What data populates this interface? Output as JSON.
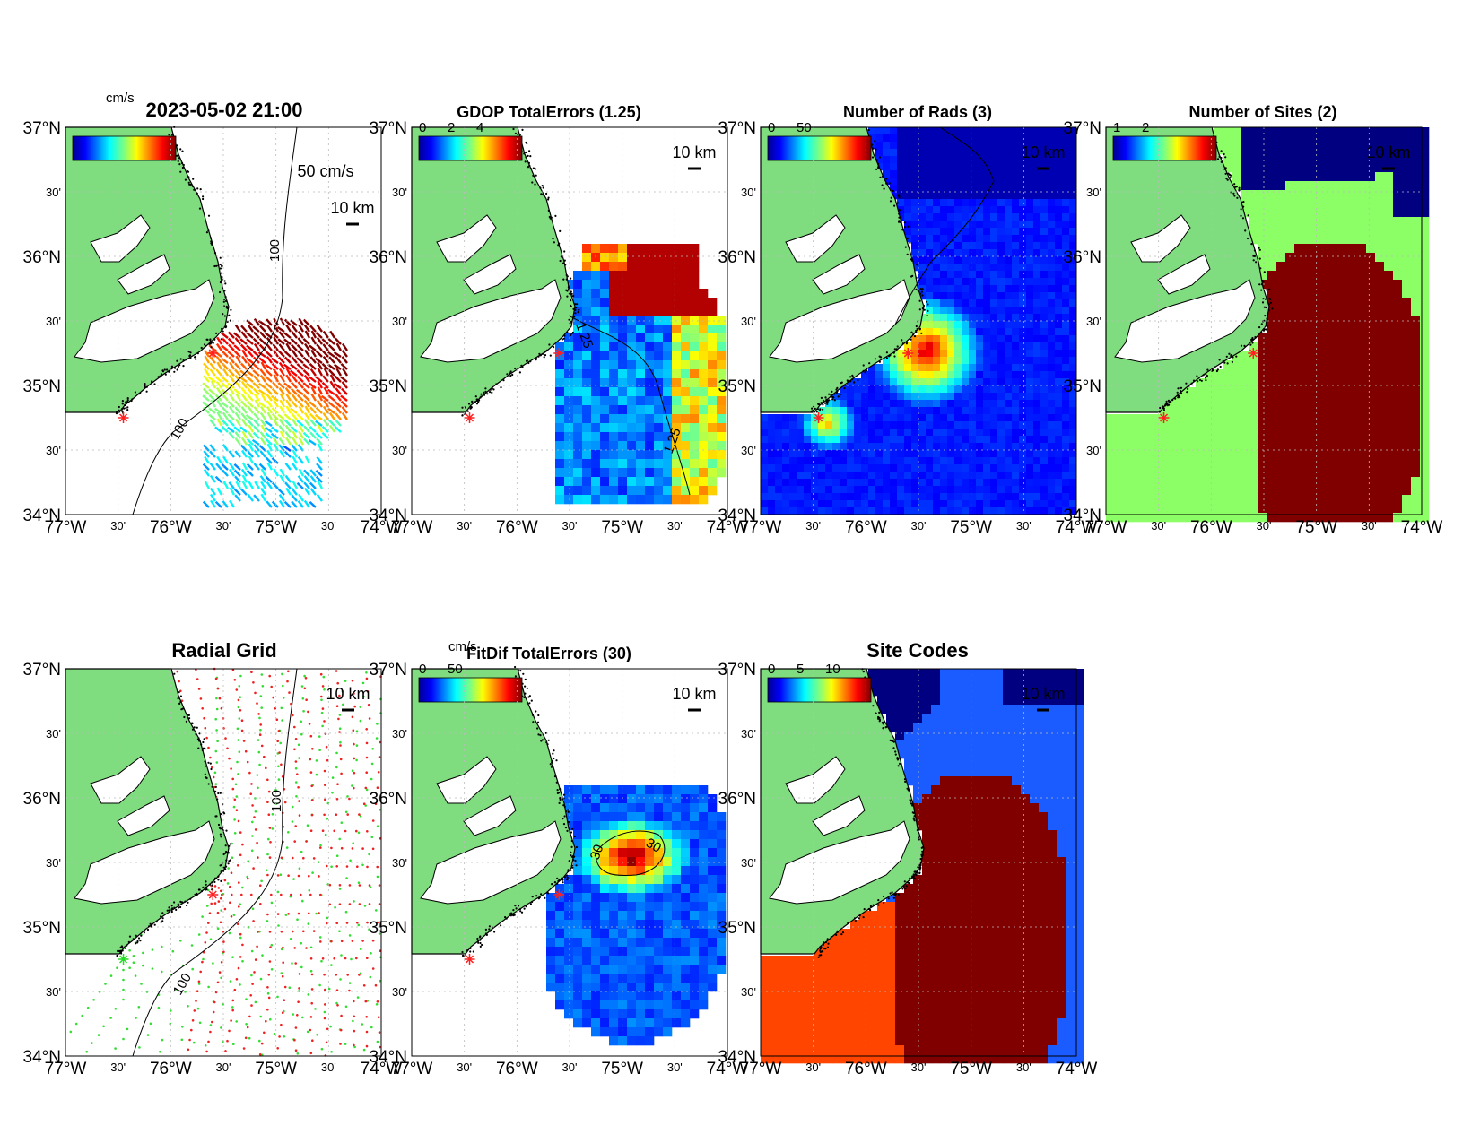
{
  "figure": {
    "timestamp": "2023-05-02 21:00",
    "cbar_unit_label": "cm/s",
    "vector_scale_label": "50 cm/s",
    "scale_bar_label": "10 km",
    "contour_label_100": "100"
  },
  "axes_ticks": {
    "lat_labels": [
      "37°N",
      "30'",
      "36°N",
      "30'",
      "35°N",
      "30'",
      "34°N"
    ],
    "lon_labels": [
      "77°W",
      "30'",
      "76°W",
      "30'",
      "75°W",
      "30'",
      "74°W"
    ]
  },
  "colors": {
    "land": "#7fdc7f",
    "coast": "#000000",
    "grid": "#bbbbbb",
    "site_marker": "#ff2020",
    "dark_red": "#800000",
    "navy": "#000080",
    "blue": "#1a5cff",
    "orange_red": "#ff4500",
    "bright_green": "#8cff66"
  },
  "chart_data": [
    {
      "type": "heatmap",
      "panel": "total-vectors",
      "title": "2023-05-02 21:00",
      "colorbar_label": "cm/s",
      "vector_scale": "50 cm/s",
      "xlim": [
        -77,
        -74
      ],
      "ylim": [
        34,
        37
      ]
    },
    {
      "type": "heatmap",
      "panel": "gdop",
      "title": "GDOP TotalErrors (1.25)",
      "colorbar_ticks": [
        "0",
        "2",
        "4"
      ],
      "contour_level": "1.25",
      "xlim": [
        -77,
        -74
      ],
      "ylim": [
        34,
        37
      ]
    },
    {
      "type": "heatmap",
      "panel": "num-rads",
      "title": "Number of Rads (3)",
      "colorbar_ticks": [
        "0",
        "50"
      ],
      "xlim": [
        -77,
        -74
      ],
      "ylim": [
        34,
        37
      ]
    },
    {
      "type": "heatmap",
      "panel": "num-sites",
      "title": "Number of Sites (2)",
      "colorbar_ticks": [
        "1",
        "2"
      ],
      "contour_level": "2",
      "xlim": [
        -77,
        -74
      ],
      "ylim": [
        34,
        37
      ]
    },
    {
      "type": "scatter",
      "panel": "radial-grid",
      "title": "Radial Grid",
      "sites": [
        {
          "lon": -75.6,
          "lat": 35.25,
          "color": "#ff2020"
        },
        {
          "lon": -76.5,
          "lat": 34.75,
          "color": "#22dd22"
        }
      ],
      "contour_level": "100",
      "xlim": [
        -77,
        -74
      ],
      "ylim": [
        34,
        37
      ]
    },
    {
      "type": "heatmap",
      "panel": "fitdif",
      "title": "FitDif TotalErrors (30)",
      "colorbar_label": "cm/s",
      "colorbar_ticks": [
        "0",
        "50"
      ],
      "contour_level": "30",
      "xlim": [
        -77,
        -74
      ],
      "ylim": [
        34,
        37
      ]
    },
    {
      "type": "heatmap",
      "panel": "site-codes",
      "title": "Site Codes",
      "colorbar_ticks": [
        "0",
        "5",
        "10"
      ],
      "xlim": [
        -77,
        -74
      ],
      "ylim": [
        34,
        37
      ]
    }
  ]
}
